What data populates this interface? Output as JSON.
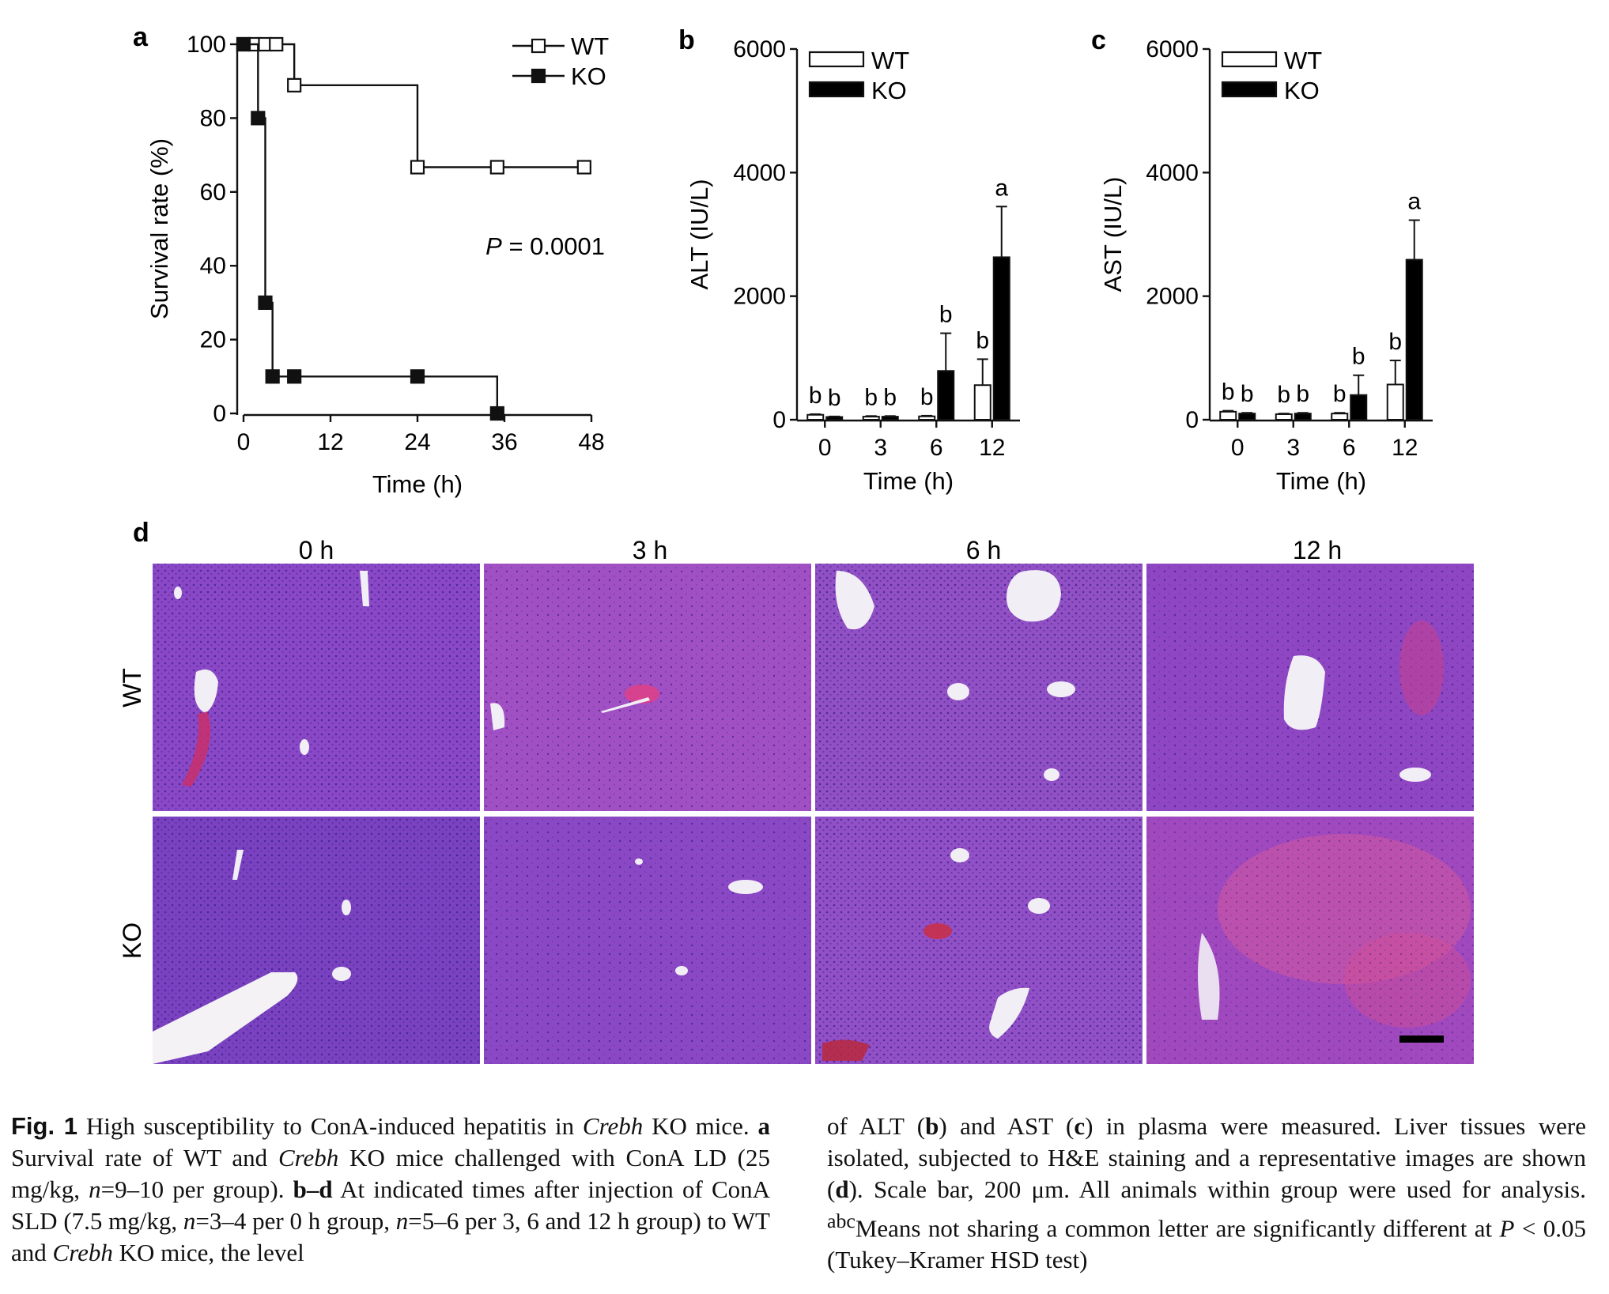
{
  "figure": {
    "panel_a": {
      "label": "a",
      "p_value_italic": "P",
      "p_value_rest": " = 0.0001"
    },
    "panel_b": {
      "label": "b"
    },
    "panel_c": {
      "label": "c"
    },
    "panel_d": {
      "label": "d",
      "columns": [
        "0 h",
        "3 h",
        "6 h",
        "12 h"
      ],
      "rows": [
        "WT",
        "KO"
      ],
      "scale_bar": "200 μm"
    }
  },
  "chart_data": [
    {
      "type": "line",
      "step": true,
      "ylabel": "Survival rate (%)",
      "xlabel": "Time (h)",
      "xlim": [
        0,
        48
      ],
      "ylim": [
        0,
        100
      ],
      "xticks": [
        0,
        12,
        24,
        36,
        48
      ],
      "yticks": [
        0,
        20,
        40,
        60,
        80,
        100
      ],
      "legend": "top-right",
      "series": [
        {
          "name": "WT",
          "marker": "open-square",
          "points": [
            [
              0,
              100
            ],
            [
              1.5,
              100
            ],
            [
              3,
              100
            ],
            [
              4.5,
              100
            ],
            [
              7,
              88.9
            ],
            [
              24,
              66.7
            ],
            [
              35,
              66.7
            ],
            [
              47,
              66.7
            ]
          ],
          "step_end": 48
        },
        {
          "name": "KO",
          "marker": "filled-square",
          "points": [
            [
              0,
              100
            ],
            [
              2,
              80
            ],
            [
              3,
              30
            ],
            [
              4,
              10
            ],
            [
              7,
              10
            ],
            [
              24,
              10
            ],
            [
              35,
              0
            ]
          ],
          "step_end": 35
        }
      ]
    },
    {
      "type": "bar",
      "ylabel": "ALT (IU/L)",
      "xlabel": "Time (h)",
      "categories": [
        "0",
        "3",
        "6",
        "12"
      ],
      "ylim": [
        0,
        6000
      ],
      "yticks": [
        0,
        2000,
        4000,
        6000
      ],
      "legend": "top-left",
      "series": [
        {
          "name": "WT",
          "fill": "#ffffff",
          "values": [
            80,
            50,
            55,
            560
          ],
          "errors": [
            10,
            10,
            10,
            420
          ]
        },
        {
          "name": "KO",
          "fill": "#000000",
          "values": [
            45,
            50,
            790,
            2630
          ],
          "errors": [
            8,
            10,
            610,
            820
          ]
        }
      ],
      "letters": [
        [
          "b",
          "b"
        ],
        [
          "b",
          "b"
        ],
        [
          "b",
          "b"
        ],
        [
          "b",
          "a"
        ]
      ]
    },
    {
      "type": "bar",
      "ylabel": "AST (IU/L)",
      "xlabel": "Time (h)",
      "categories": [
        "0",
        "3",
        "6",
        "12"
      ],
      "ylim": [
        0,
        6000
      ],
      "yticks": [
        0,
        2000,
        4000,
        6000
      ],
      "legend": "top-left",
      "series": [
        {
          "name": "WT",
          "fill": "#ffffff",
          "values": [
            130,
            90,
            100,
            570
          ],
          "errors": [
            15,
            10,
            12,
            390
          ]
        },
        {
          "name": "KO",
          "fill": "#000000",
          "values": [
            100,
            100,
            400,
            2590
          ],
          "errors": [
            12,
            12,
            320,
            640
          ]
        }
      ],
      "letters": [
        [
          "b",
          "b"
        ],
        [
          "b",
          "b"
        ],
        [
          "b",
          "b"
        ],
        [
          "b",
          "a"
        ]
      ]
    }
  ],
  "caption": {
    "left": [
      {
        "t": "Fig. 1",
        "s": "figlabel"
      },
      {
        "t": "  High susceptibility to ConA-induced hepatitis in "
      },
      {
        "t": "Crebh",
        "s": "i"
      },
      {
        "t": " KO mice. "
      },
      {
        "t": "a",
        "s": "b"
      },
      {
        "t": " Survival rate of WT and "
      },
      {
        "t": "Crebh",
        "s": "i"
      },
      {
        "t": " KO mice challenged with ConA LD (25 mg/kg, "
      },
      {
        "t": "n",
        "s": "i"
      },
      {
        "t": "=9–10 per group). "
      },
      {
        "t": "b–d",
        "s": "b"
      },
      {
        "t": " At indicated times after injection of ConA SLD (7.5 mg/kg, "
      },
      {
        "t": "n",
        "s": "i"
      },
      {
        "t": "=3–4 per 0 h group, "
      },
      {
        "t": "n",
        "s": "i"
      },
      {
        "t": "=5–6 per 3, 6 and 12 h group) to WT and "
      },
      {
        "t": "Crebh",
        "s": "i"
      },
      {
        "t": " KO mice, the level"
      }
    ],
    "right": [
      {
        "t": "of ALT ("
      },
      {
        "t": "b",
        "s": "b"
      },
      {
        "t": ") and AST ("
      },
      {
        "t": "c",
        "s": "b"
      },
      {
        "t": ") in plasma were measured. Liver tissues were isolated, subjected to H&E staining and a representative images are shown ("
      },
      {
        "t": "d",
        "s": "b"
      },
      {
        "t": "). Scale bar, 200 μm. All animals within group were used for analysis. "
      },
      {
        "t": "abc",
        "s": "sup"
      },
      {
        "t": "Means not sharing a common letter are significantly different at "
      },
      {
        "t": "P",
        "s": "i"
      },
      {
        "t": " < 0.05 (Tukey–Kramer HSD test)"
      }
    ]
  }
}
